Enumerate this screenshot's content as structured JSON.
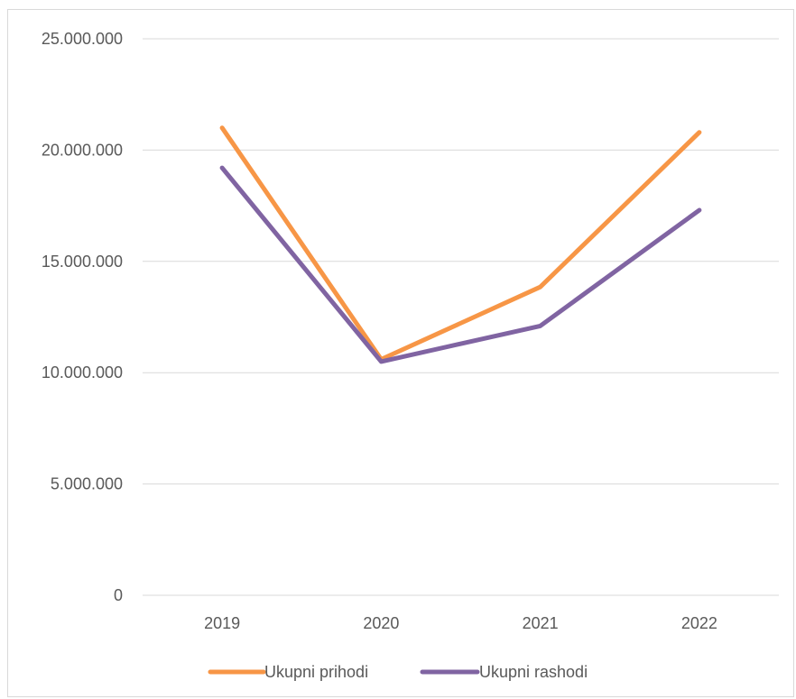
{
  "chart_data": {
    "type": "line",
    "categories": [
      "2019",
      "2020",
      "2021",
      "2022"
    ],
    "series": [
      {
        "name": "Ukupni prihodi",
        "color": "#f79646",
        "values": [
          21000000,
          10600000,
          13850000,
          20800000
        ]
      },
      {
        "name": "Ukupni rashodi",
        "color": "#8064a2",
        "values": [
          19200000,
          10500000,
          12100000,
          17300000
        ]
      }
    ],
    "ylim": [
      0,
      25000000
    ],
    "yticks": [
      {
        "value": 0,
        "label": "0"
      },
      {
        "value": 5000000,
        "label": "5.000.000"
      },
      {
        "value": 10000000,
        "label": "10.000.000"
      },
      {
        "value": 15000000,
        "label": "15.000.000"
      },
      {
        "value": 20000000,
        "label": "20.000.000"
      },
      {
        "value": 25000000,
        "label": "25.000.000"
      }
    ],
    "grid": true,
    "gridColor": "#d9d9d9",
    "legend": "bottom",
    "title": "",
    "xlabel": "",
    "ylabel": ""
  }
}
